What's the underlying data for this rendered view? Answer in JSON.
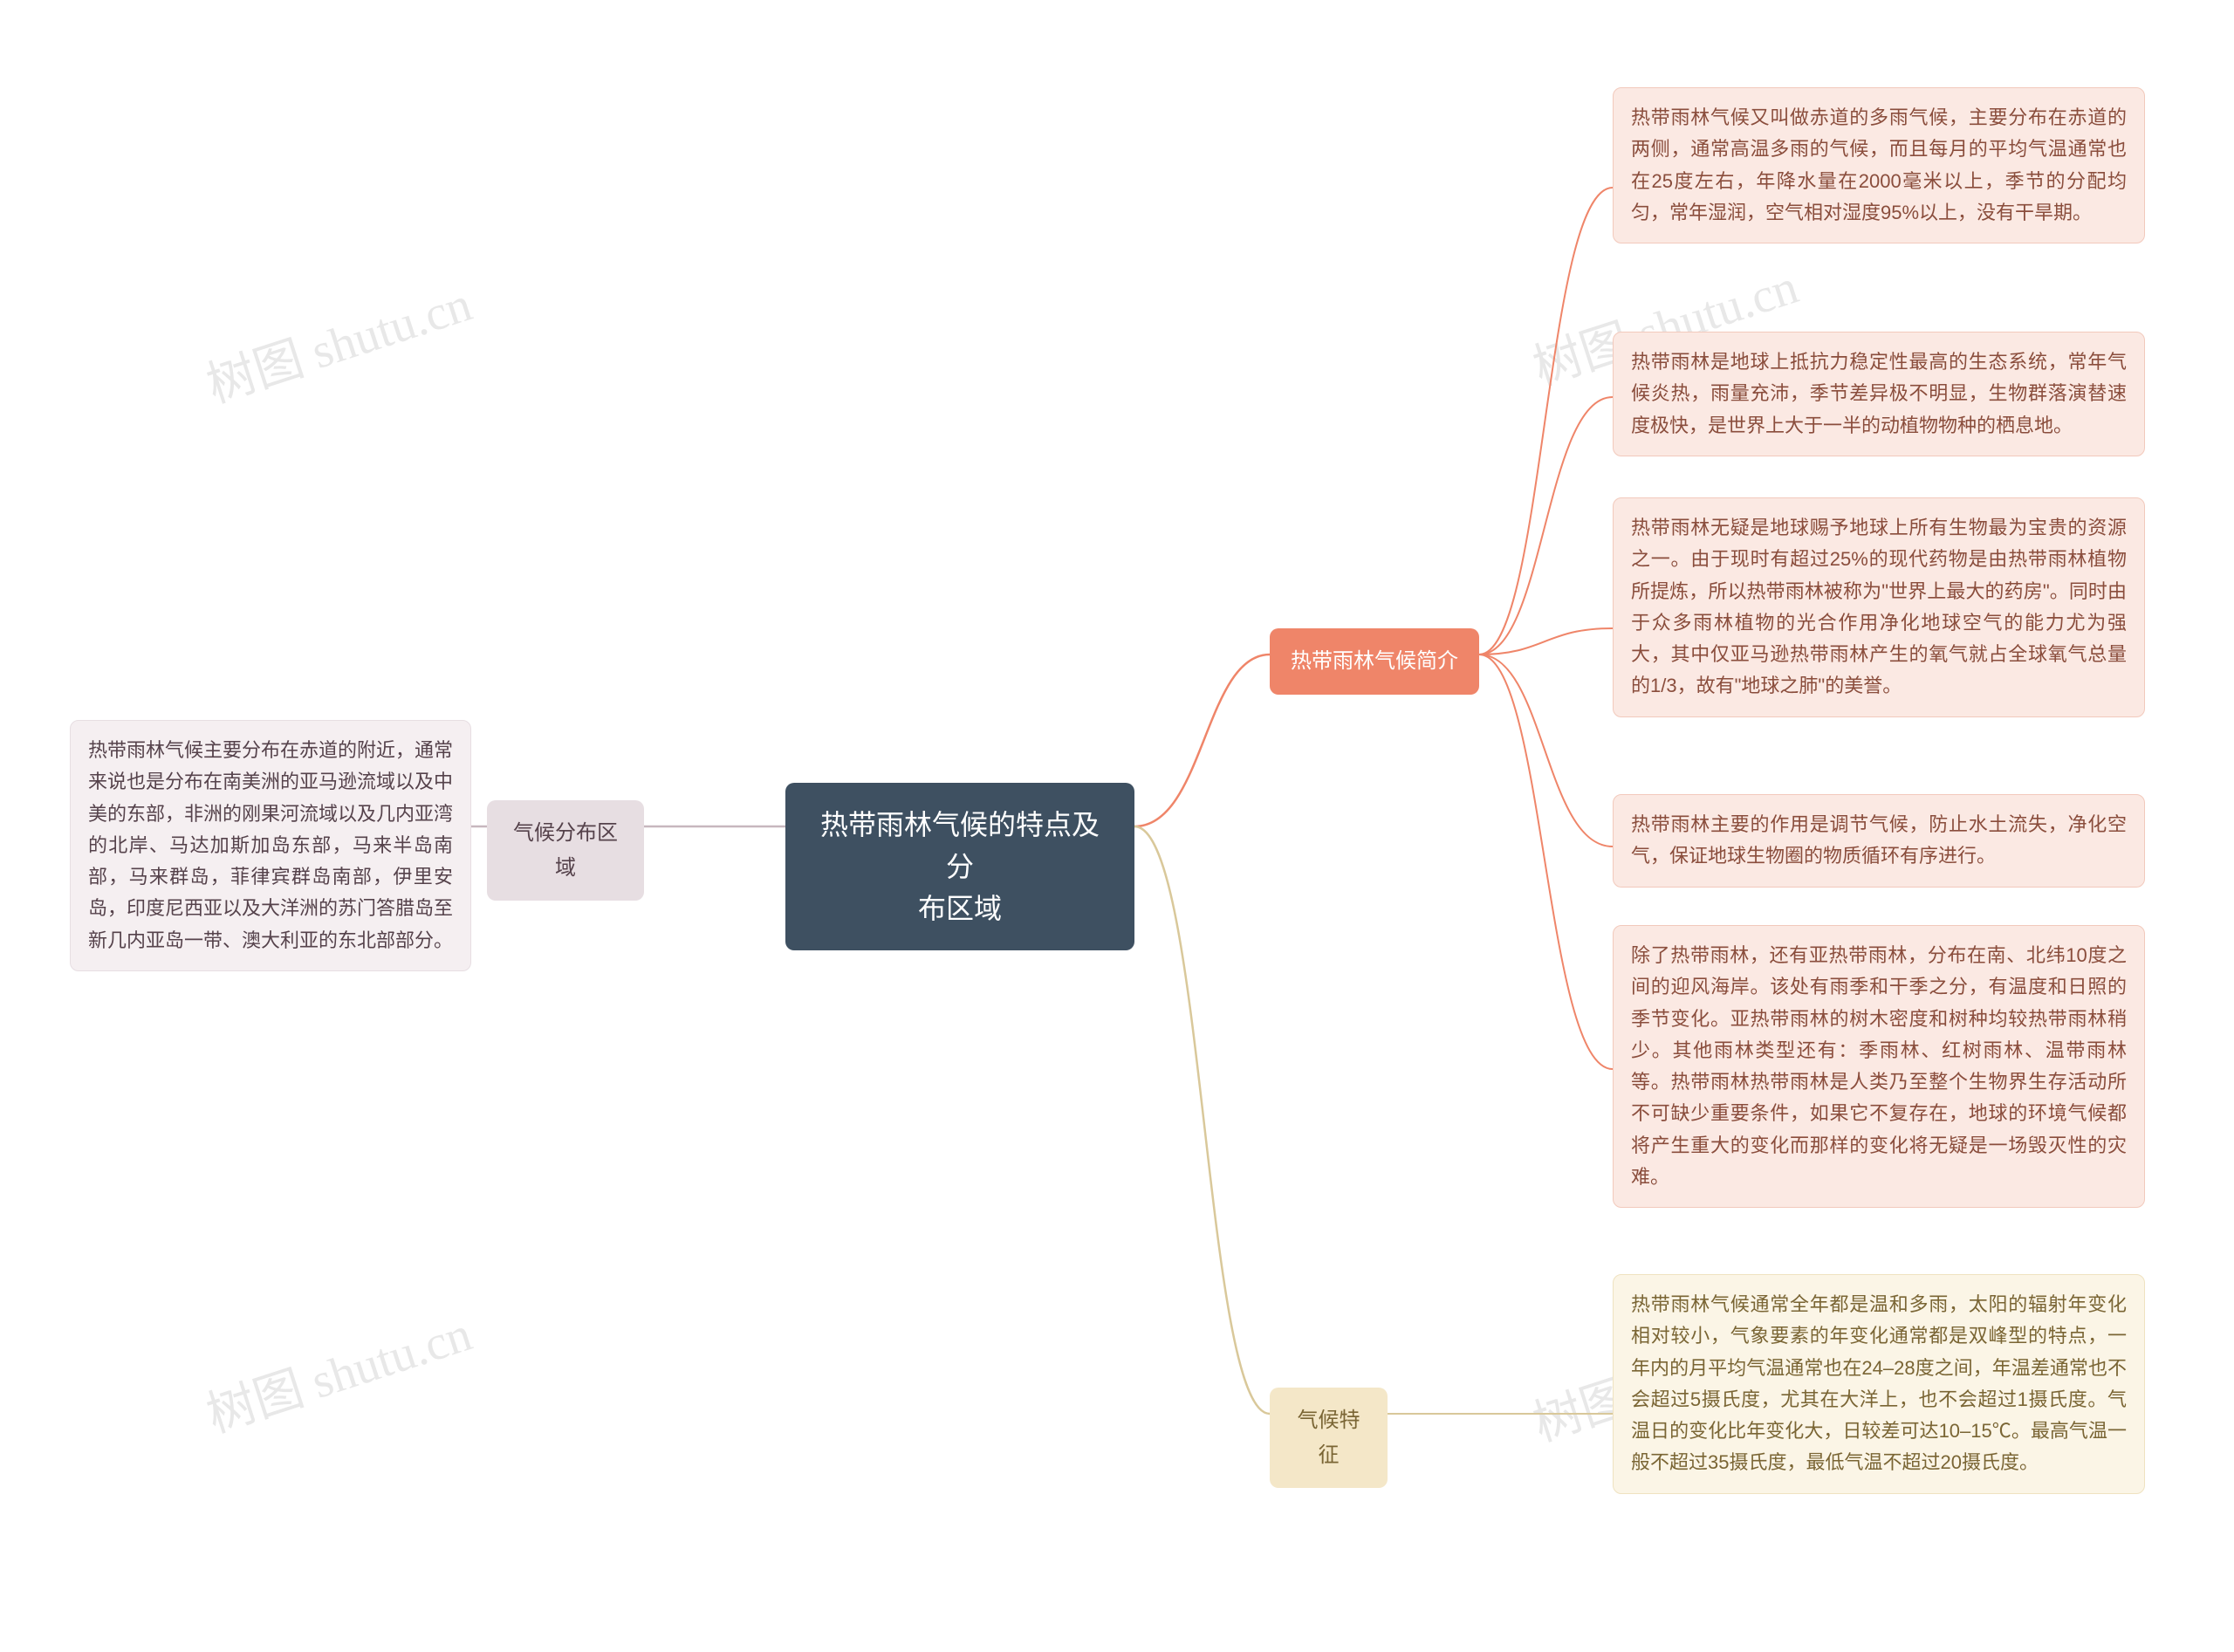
{
  "watermark": "树图 shutu.cn",
  "root": {
    "text": "热带雨林气候的特点及分\n布区域",
    "bg": "#3e5061",
    "fg": "#ffffff"
  },
  "left": {
    "category": {
      "text": "气候分布区域",
      "bg": "#e7dee2",
      "fg": "#55424b"
    },
    "leaf": {
      "text": "热带雨林气候主要分布在赤道的附近，通常来说也是分布在南美洲的亚马逊流域以及中美的东部，非洲的刚果河流域以及几内亚湾的北岸、马达加斯加岛东部，马来半岛南部，马来群岛，菲律宾群岛南部，伊里安岛，印度尼西亚以及大洋洲的苏门答腊岛至新几内亚岛一带、澳大利亚的东北部部分。",
      "bg": "#f5eff1",
      "fg": "#55424b",
      "border": "#e7dee2"
    }
  },
  "right": {
    "intro": {
      "category": {
        "text": "热带雨林气候简介",
        "bg": "#ef8569",
        "fg": "#ffffff"
      },
      "leaves": [
        {
          "text": "热带雨林气候又叫做赤道的多雨气候，主要分布在赤道的两侧，通常高温多雨的气候，而且每月的平均气温通常也在25度左右，年降水量在2000毫米以上，季节的分配均匀，常年湿润，空气相对湿度95%以上，没有干旱期。",
          "bg": "#fbe9e3",
          "fg": "#8a4d3c",
          "border": "#f2c9bc"
        },
        {
          "text": "热带雨林是地球上抵抗力稳定性最高的生态系统，常年气候炎热，雨量充沛，季节差异极不明显，生物群落演替速度极快，是世界上大于一半的动植物物种的栖息地。",
          "bg": "#fbe9e3",
          "fg": "#8a4d3c",
          "border": "#f2c9bc"
        },
        {
          "text": "热带雨林无疑是地球赐予地球上所有生物最为宝贵的资源之一。由于现时有超过25%的现代药物是由热带雨林植物所提炼，所以热带雨林被称为\"世界上最大的药房\"。同时由于众多雨林植物的光合作用净化地球空气的能力尤为强大，其中仅亚马逊热带雨林产生的氧气就占全球氧气总量的1/3，故有\"地球之肺\"的美誉。",
          "bg": "#fbe9e3",
          "fg": "#8a4d3c",
          "border": "#f2c9bc"
        },
        {
          "text": "热带雨林主要的作用是调节气候，防止水土流失，净化空气，保证地球生物圈的物质循环有序进行。",
          "bg": "#fbe9e3",
          "fg": "#8a4d3c",
          "border": "#f2c9bc"
        },
        {
          "text": "除了热带雨林，还有亚热带雨林，分布在南、北纬10度之间的迎风海岸。该处有雨季和干季之分，有温度和日照的季节变化。亚热带雨林的树木密度和树种均较热带雨林稍少。其他雨林类型还有：季雨林、红树雨林、温带雨林等。热带雨林热带雨林是人类乃至整个生物界生存活动所不可缺少重要条件，如果它不复存在，地球的环境气候都将产生重大的变化而那样的变化将无疑是一场毁灭性的灾难。",
          "bg": "#fbe9e3",
          "fg": "#8a4d3c",
          "border": "#f2c9bc"
        }
      ]
    },
    "features": {
      "category": {
        "text": "气候特征",
        "bg": "#f4e7c8",
        "fg": "#7a6534"
      },
      "leaf": {
        "text": "热带雨林气候通常全年都是温和多雨，太阳的辐射年变化相对较小，气象要素的年变化通常都是双峰型的特点，一年内的月平均气温通常也在24–28度之间，年温差通常也不会超过5摄氏度，尤其在大洋上，也不会超过1摄氏度。气温日的变化比年变化大，日较差可达10–15℃。最高气温一般不超过35摄氏度，最低气温不超过20摄氏度。",
        "bg": "#fbf5e6",
        "fg": "#7a6534",
        "border": "#efe2c0"
      }
    }
  },
  "connector_colors": {
    "left": "#c7b7be",
    "intro": "#ef8569",
    "features": "#d9c89a"
  }
}
